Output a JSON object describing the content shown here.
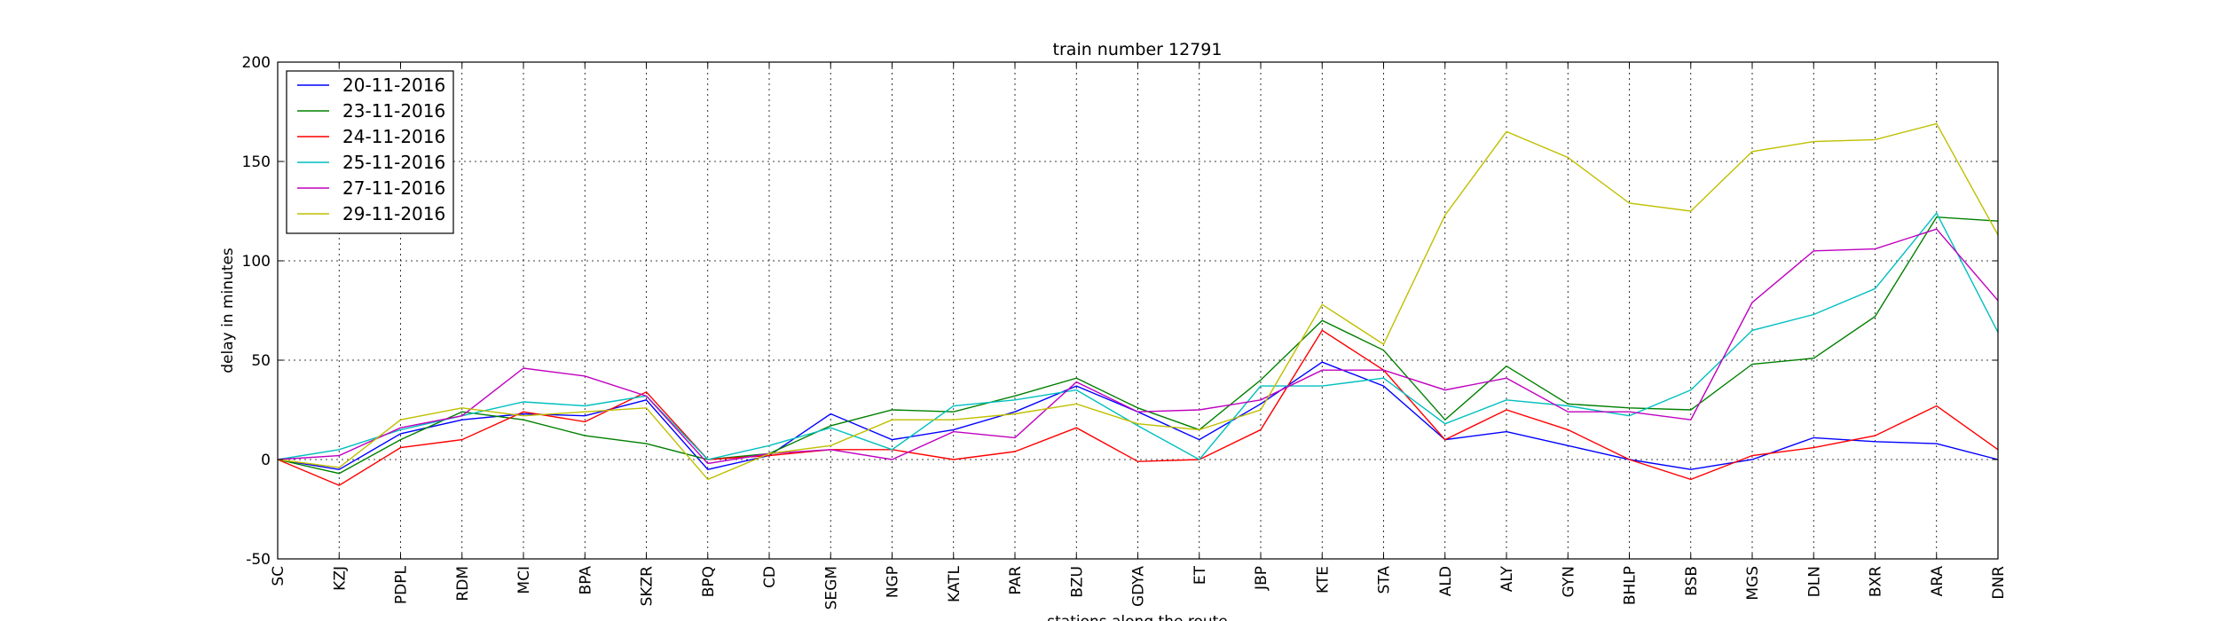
{
  "chart_data": {
    "type": "line",
    "title": "train number 12791",
    "xlabel": "stations along the route",
    "ylabel": "delay in minutes",
    "ylim": [
      -50,
      200
    ],
    "yticks": [
      -50,
      0,
      50,
      100,
      150,
      200
    ],
    "grid": true,
    "legend_position": "top-left",
    "categories": [
      "SC",
      "KZJ",
      "PDPL",
      "RDM",
      "MCI",
      "BPA",
      "SKZR",
      "BPQ",
      "CD",
      "SEGM",
      "NGP",
      "KATL",
      "PAR",
      "BZU",
      "GDYA",
      "ET",
      "JBP",
      "KTE",
      "STA",
      "ALD",
      "ALY",
      "GYN",
      "BHLP",
      "BSB",
      "MGS",
      "DLN",
      "BXR",
      "ARA",
      "DNR"
    ],
    "series": [
      {
        "name": "20-11-2016",
        "color": "#0000ff",
        "values": [
          0,
          -5,
          13,
          20,
          23,
          22,
          30,
          -5,
          2,
          23,
          10,
          15,
          24,
          37,
          24,
          10,
          28,
          49,
          37,
          10,
          14,
          7,
          0,
          -5,
          0,
          11,
          9,
          8,
          0
        ]
      },
      {
        "name": "23-11-2016",
        "color": "#008000",
        "values": [
          0,
          -7,
          10,
          24,
          20,
          12,
          8,
          0,
          3,
          17,
          25,
          24,
          32,
          41,
          26,
          15,
          40,
          70,
          55,
          20,
          47,
          28,
          26,
          25,
          48,
          51,
          72,
          122,
          120
        ]
      },
      {
        "name": "24-11-2016",
        "color": "#ff0000",
        "values": [
          0,
          -13,
          6,
          10,
          24,
          19,
          34,
          0,
          2,
          5,
          5,
          0,
          4,
          16,
          -1,
          0,
          15,
          65,
          45,
          10,
          25,
          15,
          0,
          -10,
          2,
          6,
          12,
          27,
          5
        ]
      },
      {
        "name": "25-11-2016",
        "color": "#00bfbf",
        "values": [
          0,
          5,
          15,
          22,
          29,
          27,
          32,
          0,
          7,
          16,
          5,
          27,
          30,
          35,
          17,
          0,
          37,
          37,
          41,
          18,
          30,
          27,
          22,
          35,
          65,
          73,
          86,
          124,
          64
        ]
      },
      {
        "name": "27-11-2016",
        "color": "#bf00bf",
        "values": [
          0,
          2,
          16,
          22,
          46,
          42,
          32,
          -2,
          3,
          5,
          0,
          14,
          11,
          39,
          24,
          25,
          30,
          45,
          45,
          35,
          41,
          24,
          24,
          20,
          79,
          105,
          106,
          116,
          80
        ]
      },
      {
        "name": "29-11-2016",
        "color": "#bfbf00",
        "values": [
          0,
          -4,
          20,
          26,
          22,
          24,
          26,
          -10,
          3,
          7,
          20,
          20,
          23,
          28,
          18,
          15,
          25,
          78,
          58,
          123,
          165,
          152,
          129,
          125,
          155,
          160,
          161,
          169,
          113
        ]
      }
    ]
  }
}
